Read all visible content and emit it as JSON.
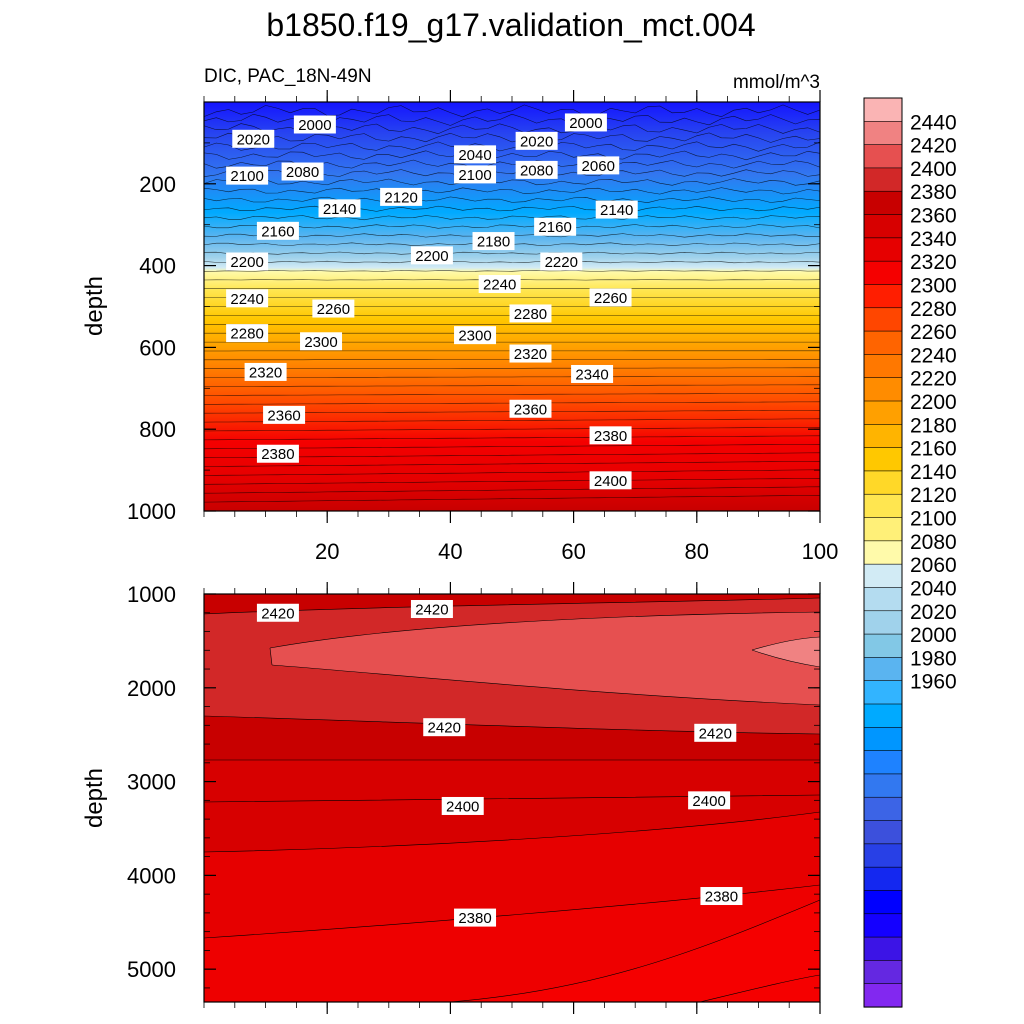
{
  "title": "b1850.f19_g17.validation_mct.004",
  "chart_data": [
    {
      "type": "contour",
      "panel": "upper",
      "title": "DIC, PAC_18N-49N",
      "units": "mmol/m^3",
      "xlabel": "",
      "ylabel": "depth",
      "xlim": [
        0,
        100
      ],
      "ylim": [
        0,
        1000
      ],
      "y_reversed": true,
      "x_ticks": [
        20,
        40,
        60,
        80,
        100
      ],
      "y_ticks": [
        200,
        400,
        600,
        800,
        1000
      ],
      "contour_labels": [
        {
          "x": 18,
          "y": 55,
          "text": "2000"
        },
        {
          "x": 62,
          "y": 50,
          "text": "2000"
        },
        {
          "x": 8,
          "y": 90,
          "text": "2020"
        },
        {
          "x": 54,
          "y": 95,
          "text": "2020"
        },
        {
          "x": 44,
          "y": 128,
          "text": "2040"
        },
        {
          "x": 64,
          "y": 155,
          "text": "2060"
        },
        {
          "x": 7,
          "y": 180,
          "text": "2100"
        },
        {
          "x": 16,
          "y": 170,
          "text": "2080"
        },
        {
          "x": 44,
          "y": 177,
          "text": "2100"
        },
        {
          "x": 54,
          "y": 166,
          "text": "2080"
        },
        {
          "x": 32,
          "y": 232,
          "text": "2120"
        },
        {
          "x": 22,
          "y": 260,
          "text": "2140"
        },
        {
          "x": 67,
          "y": 263,
          "text": "2140"
        },
        {
          "x": 12,
          "y": 315,
          "text": "2160"
        },
        {
          "x": 57,
          "y": 305,
          "text": "2160"
        },
        {
          "x": 47,
          "y": 340,
          "text": "2180"
        },
        {
          "x": 7,
          "y": 390,
          "text": "2200"
        },
        {
          "x": 37,
          "y": 375,
          "text": "2200"
        },
        {
          "x": 58,
          "y": 390,
          "text": "2220"
        },
        {
          "x": 48,
          "y": 445,
          "text": "2240"
        },
        {
          "x": 7,
          "y": 480,
          "text": "2240"
        },
        {
          "x": 21,
          "y": 505,
          "text": "2260"
        },
        {
          "x": 66,
          "y": 478,
          "text": "2260"
        },
        {
          "x": 53,
          "y": 517,
          "text": "2280"
        },
        {
          "x": 7,
          "y": 565,
          "text": "2280"
        },
        {
          "x": 19,
          "y": 585,
          "text": "2300"
        },
        {
          "x": 44,
          "y": 570,
          "text": "2300"
        },
        {
          "x": 53,
          "y": 615,
          "text": "2320"
        },
        {
          "x": 10,
          "y": 660,
          "text": "2320"
        },
        {
          "x": 63,
          "y": 665,
          "text": "2340"
        },
        {
          "x": 13,
          "y": 765,
          "text": "2360"
        },
        {
          "x": 53,
          "y": 750,
          "text": "2360"
        },
        {
          "x": 66,
          "y": 815,
          "text": "2380"
        },
        {
          "x": 12,
          "y": 860,
          "text": "2380"
        },
        {
          "x": 66,
          "y": 925,
          "text": "2400"
        }
      ]
    },
    {
      "type": "contour",
      "panel": "lower",
      "xlabel": "",
      "ylabel": "depth",
      "xlim": [
        0,
        100
      ],
      "ylim": [
        1000,
        5350
      ],
      "y_reversed": true,
      "y_ticks": [
        1000,
        2000,
        3000,
        4000,
        5000
      ],
      "contour_labels": [
        {
          "x": 12,
          "y": 1200,
          "text": "2420"
        },
        {
          "x": 37,
          "y": 1160,
          "text": "2420"
        },
        {
          "x": 39,
          "y": 2420,
          "text": "2420"
        },
        {
          "x": 83,
          "y": 2480,
          "text": "2420"
        },
        {
          "x": 42,
          "y": 3260,
          "text": "2400"
        },
        {
          "x": 82,
          "y": 3200,
          "text": "2400"
        },
        {
          "x": 44,
          "y": 4450,
          "text": "2380"
        },
        {
          "x": 84,
          "y": 4220,
          "text": "2380"
        }
      ]
    }
  ],
  "colorbar": {
    "labels": [
      "2440",
      "2420",
      "2400",
      "2380",
      "2360",
      "2340",
      "2320",
      "2300",
      "2280",
      "2260",
      "2240",
      "2220",
      "2200",
      "2180",
      "2160",
      "2140",
      "2120",
      "2100",
      "2080",
      "2060",
      "2040",
      "2020",
      "2000",
      "1980",
      "1960"
    ],
    "colors": [
      "#fab4b4",
      "#f08282",
      "#e65050",
      "#d22828",
      "#c80000",
      "#d70000",
      "#e60000",
      "#f50000",
      "#ff1e00",
      "#ff4600",
      "#ff6400",
      "#ff7800",
      "#ff8c00",
      "#ffa000",
      "#ffb400",
      "#ffc800",
      "#ffd828",
      "#ffe650",
      "#fff078",
      "#fffaaa",
      "#d2ebf5",
      "#b4dcf0",
      "#a0d2eb",
      "#82c8e6",
      "#5ab4f0",
      "#32b4ff",
      "#00aaff",
      "#0096ff",
      "#1e82ff",
      "#3278f0",
      "#3c64e6",
      "#3c50dc",
      "#2840e6",
      "#1428f0",
      "#0000ff",
      "#1400ff",
      "#3c14e6",
      "#6428e1",
      "#8228f0"
    ]
  }
}
